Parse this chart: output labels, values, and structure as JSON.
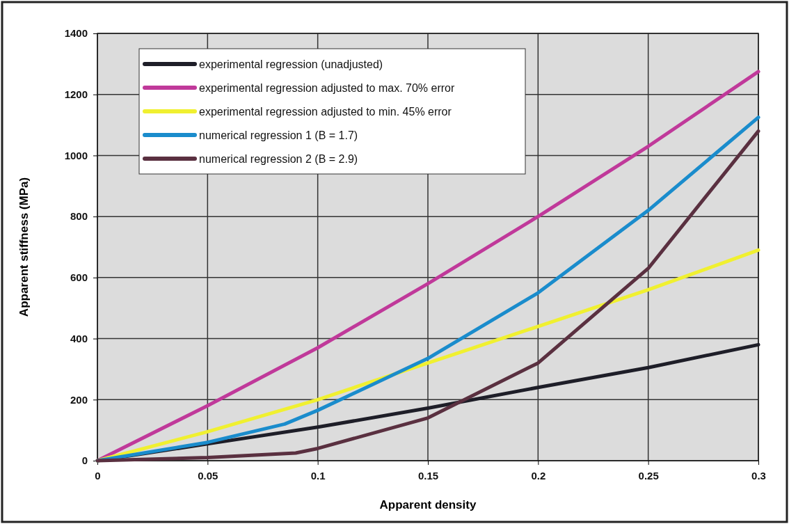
{
  "chart_data": {
    "type": "line",
    "xlabel": "Apparent density",
    "ylabel": "Apparent stiffness (MPa)",
    "xlim": [
      0,
      0.3
    ],
    "ylim": [
      0,
      1400
    ],
    "xticks": [
      0,
      0.05,
      0.1,
      0.15,
      0.2,
      0.25,
      0.3
    ],
    "yticks": [
      0,
      200,
      400,
      600,
      800,
      1000,
      1200,
      1400
    ],
    "grid": true,
    "legend": "top left",
    "marker": "none",
    "line_style": "solid",
    "series": [
      {
        "name": "experimental regression (unadjusted)",
        "color": "#1e1e28",
        "x": [
          0,
          0.05,
          0.1,
          0.15,
          0.2,
          0.25,
          0.3
        ],
        "values": [
          0,
          55,
          110,
          172,
          240,
          305,
          380
        ]
      },
      {
        "name": "experimental regression adjusted to max. 70% error",
        "color": "#c0399a",
        "x": [
          0,
          0.05,
          0.1,
          0.15,
          0.2,
          0.25,
          0.3
        ],
        "values": [
          0,
          180,
          370,
          580,
          800,
          1030,
          1275
        ]
      },
      {
        "name": "experimental regression adjusted to min. 45% error",
        "color": "#f0f030",
        "x": [
          0,
          0.05,
          0.1,
          0.15,
          0.2,
          0.25,
          0.3
        ],
        "values": [
          0,
          95,
          200,
          320,
          440,
          560,
          690
        ]
      },
      {
        "name": "numerical regression 1 (B = 1.7)",
        "color": "#1a8ccc",
        "x": [
          0,
          0.05,
          0.085,
          0.1,
          0.15,
          0.2,
          0.25,
          0.3
        ],
        "values": [
          0,
          60,
          120,
          165,
          335,
          550,
          820,
          1125
        ]
      },
      {
        "name": "numerical regression 2 (B = 2.9)",
        "color": "#5a3040",
        "x": [
          0,
          0.05,
          0.09,
          0.1,
          0.15,
          0.2,
          0.25,
          0.3
        ],
        "values": [
          0,
          10,
          25,
          40,
          140,
          320,
          630,
          1080
        ]
      }
    ]
  }
}
